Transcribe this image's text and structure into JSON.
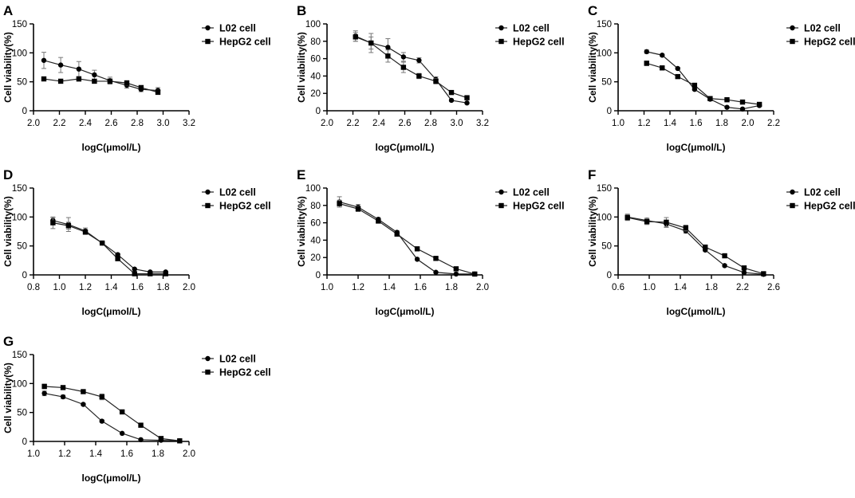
{
  "chart_data": [
    {
      "panel": "A",
      "type": "line",
      "xlabel": "logC(μmol/L)",
      "ylabel": "Cell viability(%)",
      "xlim": [
        2.0,
        3.2
      ],
      "ylim": [
        0,
        150
      ],
      "xticks": [
        "2.0",
        "2.2",
        "2.4",
        "2.6",
        "2.8",
        "3.0",
        "3.2"
      ],
      "yticks": [
        "0",
        "50",
        "100",
        "150"
      ],
      "series": [
        {
          "name": "L02 cell",
          "marker": "circle",
          "x": [
            2.08,
            2.21,
            2.35,
            2.47,
            2.59,
            2.72,
            2.83,
            2.96
          ],
          "values": [
            87,
            79,
            72,
            62,
            52,
            44,
            37,
            35
          ],
          "errors": [
            14,
            13,
            13,
            8,
            6,
            5,
            4,
            5
          ]
        },
        {
          "name": "HepG2 cell",
          "marker": "square",
          "x": [
            2.08,
            2.21,
            2.35,
            2.47,
            2.59,
            2.72,
            2.83,
            2.96
          ],
          "values": [
            55,
            51,
            55,
            51,
            51,
            48,
            40,
            32
          ],
          "errors": [
            3,
            3,
            4,
            3,
            4,
            4,
            3,
            4
          ]
        }
      ]
    },
    {
      "panel": "B",
      "type": "line",
      "xlabel": "logC(μmol/L)",
      "ylabel": "Cell viability(%)",
      "xlim": [
        2.0,
        3.2
      ],
      "ylim": [
        0,
        100
      ],
      "xticks": [
        "2.0",
        "2.2",
        "2.4",
        "2.6",
        "2.8",
        "3.0",
        "3.2"
      ],
      "yticks": [
        "0",
        "20",
        "40",
        "60",
        "80",
        "100"
      ],
      "series": [
        {
          "name": "L02 cell",
          "marker": "circle",
          "x": [
            2.22,
            2.34,
            2.47,
            2.59,
            2.71,
            2.84,
            2.96,
            3.08
          ],
          "values": [
            86,
            78,
            73,
            62,
            58,
            36,
            12,
            9
          ],
          "errors": [
            6,
            7,
            10,
            5,
            3,
            3,
            1,
            1
          ]
        },
        {
          "name": "HepG2 cell",
          "marker": "square",
          "x": [
            2.22,
            2.34,
            2.47,
            2.59,
            2.71,
            2.84,
            2.96,
            3.08
          ],
          "values": [
            85,
            78,
            63,
            50,
            40,
            34,
            21,
            15
          ],
          "errors": [
            5,
            11,
            7,
            6,
            3,
            3,
            1,
            1
          ]
        }
      ]
    },
    {
      "panel": "C",
      "type": "line",
      "xlabel": "logC(μmol/L)",
      "ylabel": "Cell viability(%)",
      "xlim": [
        1.0,
        2.2
      ],
      "ylim": [
        0,
        150
      ],
      "xticks": [
        "1.0",
        "1.2",
        "1.4",
        "1.6",
        "1.8",
        "2.0",
        "2.2"
      ],
      "yticks": [
        "0",
        "50",
        "100",
        "150"
      ],
      "series": [
        {
          "name": "L02 cell",
          "marker": "circle",
          "x": [
            1.22,
            1.34,
            1.46,
            1.59,
            1.71,
            1.84,
            1.96,
            2.09
          ],
          "values": [
            102,
            96,
            73,
            37,
            20,
            6,
            3,
            9
          ],
          "errors": [
            3,
            2,
            2,
            2,
            2,
            1,
            1,
            1
          ]
        },
        {
          "name": "HepG2 cell",
          "marker": "square",
          "x": [
            1.22,
            1.34,
            1.46,
            1.59,
            1.71,
            1.84,
            1.96,
            2.09
          ],
          "values": [
            82,
            74,
            59,
            44,
            21,
            19,
            15,
            11
          ],
          "errors": [
            4,
            3,
            3,
            3,
            2,
            2,
            2,
            2
          ]
        }
      ]
    },
    {
      "panel": "D",
      "type": "line",
      "xlabel": "logC(μmol/L)",
      "ylabel": "Cell viability(%)",
      "xlim": [
        0.8,
        2.0
      ],
      "ylim": [
        0,
        150
      ],
      "xticks": [
        "0.8",
        "1.0",
        "1.2",
        "1.4",
        "1.6",
        "1.8",
        "2.0"
      ],
      "yticks": [
        "0",
        "50",
        "100",
        "150"
      ],
      "series": [
        {
          "name": "L02 cell",
          "marker": "circle",
          "x": [
            0.95,
            1.07,
            1.2,
            1.33,
            1.45,
            1.58,
            1.7,
            1.82
          ],
          "values": [
            94,
            87,
            76,
            55,
            35,
            10,
            5,
            5
          ],
          "errors": [
            5,
            12,
            5,
            2,
            2,
            1,
            1,
            1
          ]
        },
        {
          "name": "HepG2 cell",
          "marker": "square",
          "x": [
            0.95,
            1.07,
            1.2,
            1.33,
            1.45,
            1.58,
            1.7,
            1.82
          ],
          "values": [
            90,
            85,
            74,
            55,
            28,
            2,
            2,
            2
          ],
          "errors": [
            10,
            6,
            4,
            2,
            2,
            1,
            1,
            1
          ]
        }
      ]
    },
    {
      "panel": "E",
      "type": "line",
      "xlabel": "logC(μmol/L)",
      "ylabel": "Cell viability(%)",
      "xlim": [
        1.0,
        2.0
      ],
      "ylim": [
        0,
        100
      ],
      "xticks": [
        "1.0",
        "1.2",
        "1.4",
        "1.6",
        "1.8",
        "2.0"
      ],
      "yticks": [
        "0",
        "20",
        "40",
        "60",
        "80",
        "100"
      ],
      "series": [
        {
          "name": "L02 cell",
          "marker": "circle",
          "x": [
            1.08,
            1.2,
            1.33,
            1.45,
            1.58,
            1.7,
            1.83,
            1.95
          ],
          "values": [
            84,
            78,
            64,
            49,
            18,
            3,
            1,
            1
          ],
          "errors": [
            6,
            3,
            2,
            2,
            1,
            1,
            1,
            1
          ]
        },
        {
          "name": "HepG2 cell",
          "marker": "square",
          "x": [
            1.08,
            1.2,
            1.33,
            1.45,
            1.58,
            1.7,
            1.83,
            1.95
          ],
          "values": [
            82,
            76,
            62,
            47,
            30,
            19,
            7,
            1
          ],
          "errors": [
            4,
            3,
            2,
            2,
            1,
            1,
            1,
            1
          ]
        }
      ]
    },
    {
      "panel": "F",
      "type": "line",
      "xlabel": "logC(μmol/L)",
      "ylabel": "Cell viability(%)",
      "xlim": [
        0.6,
        2.6
      ],
      "ylim": [
        0,
        150
      ],
      "xticks": [
        "0.6",
        "1.0",
        "1.4",
        "1.8",
        "2.2",
        "2.6"
      ],
      "yticks": [
        "0",
        "50",
        "100",
        "150"
      ],
      "series": [
        {
          "name": "L02 cell",
          "marker": "circle",
          "x": [
            0.72,
            0.97,
            1.22,
            1.47,
            1.72,
            1.97,
            2.22,
            2.47
          ],
          "values": [
            100,
            94,
            88,
            76,
            43,
            16,
            4,
            1
          ],
          "errors": [
            5,
            4,
            6,
            4,
            2,
            2,
            1,
            1
          ]
        },
        {
          "name": "HepG2 cell",
          "marker": "square",
          "x": [
            0.72,
            0.97,
            1.22,
            1.47,
            1.72,
            1.97,
            2.22,
            2.47
          ],
          "values": [
            99,
            92,
            91,
            81,
            48,
            33,
            12,
            2
          ],
          "errors": [
            5,
            5,
            8,
            5,
            3,
            2,
            2,
            1
          ]
        }
      ]
    },
    {
      "panel": "G",
      "type": "line",
      "xlabel": "logC(μmol/L)",
      "ylabel": "Cell viability(%)",
      "xlim": [
        1.0,
        2.0
      ],
      "ylim": [
        0,
        150
      ],
      "xticks": [
        "1.0",
        "1.2",
        "1.4",
        "1.6",
        "1.8",
        "2.0"
      ],
      "yticks": [
        "0",
        "50",
        "100",
        "150"
      ],
      "series": [
        {
          "name": "L02 cell",
          "marker": "circle",
          "x": [
            1.07,
            1.19,
            1.32,
            1.44,
            1.57,
            1.69,
            1.82,
            1.94
          ],
          "values": [
            83,
            77,
            64,
            35,
            14,
            3,
            2,
            1
          ],
          "errors": [
            4,
            3,
            2,
            2,
            1,
            1,
            1,
            1
          ]
        },
        {
          "name": "HepG2 cell",
          "marker": "square",
          "x": [
            1.07,
            1.19,
            1.32,
            1.44,
            1.57,
            1.69,
            1.82,
            1.94
          ],
          "values": [
            95,
            93,
            86,
            77,
            51,
            28,
            5,
            1
          ],
          "errors": [
            4,
            3,
            3,
            5,
            3,
            2,
            1,
            1
          ]
        }
      ]
    }
  ]
}
